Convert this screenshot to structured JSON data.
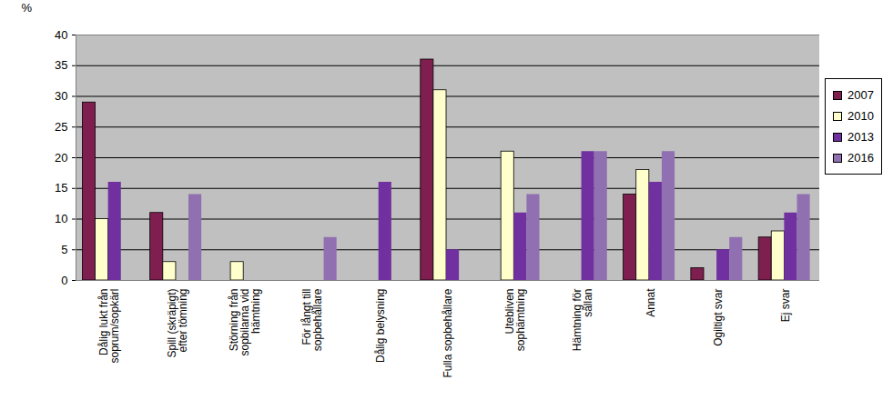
{
  "chart_data": {
    "type": "bar",
    "categories": [
      "Dålig lukt från soprum/sopkärl",
      "Spill (skräpigt) efter tömning",
      "Störning från sopbilarna vid hämtning",
      "För långt till sopbehållare",
      "Dålig belysning",
      "Fulla sopbehållare",
      "Utebliven sophämtning",
      "Hämtning för sällan",
      "Annat",
      "Ogiltigt svar",
      "Ej svar"
    ],
    "series": [
      {
        "name": "2007",
        "color": "#7f1f4f",
        "values": [
          29,
          11,
          null,
          null,
          null,
          36,
          null,
          null,
          14,
          2,
          7
        ]
      },
      {
        "name": "2010",
        "color": "#ffffcc",
        "values": [
          10,
          3,
          3,
          null,
          null,
          31,
          21,
          null,
          18,
          null,
          8
        ]
      },
      {
        "name": "2013",
        "color": "#7030a0",
        "values": [
          16,
          null,
          null,
          null,
          16,
          5,
          11,
          21,
          16,
          5,
          11
        ]
      },
      {
        "name": "2016",
        "color": "#9070b0",
        "values": [
          null,
          14,
          null,
          7,
          null,
          null,
          14,
          21,
          21,
          7,
          14
        ]
      }
    ],
    "y_label": "%",
    "ylim": [
      0,
      40
    ],
    "yticks": [
      0,
      5,
      10,
      15,
      20,
      25,
      30,
      35,
      40
    ],
    "grid": true,
    "legend": "right"
  }
}
